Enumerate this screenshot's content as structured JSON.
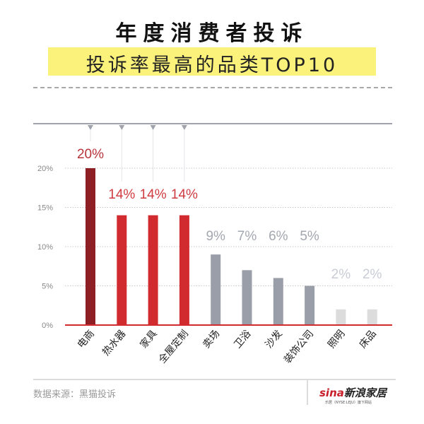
{
  "header": {
    "title": "年度消费者投诉",
    "subtitle": "投诉率最高的品类TOP10"
  },
  "chart_data": {
    "type": "bar",
    "title": "投诉率最高的品类TOP10",
    "xlabel": "",
    "ylabel": "",
    "ylim": [
      0,
      20
    ],
    "yticks": [
      "0%",
      "5%",
      "10%",
      "15%",
      "20%"
    ],
    "ytick_values": [
      0,
      5,
      10,
      15,
      20
    ],
    "grid": true,
    "categories": [
      "电商",
      "热水器",
      "家具",
      "全屋定制",
      "卖场",
      "卫浴",
      "沙发",
      "装饰公司",
      "照明",
      "床品"
    ],
    "values": [
      20,
      14,
      14,
      14,
      9,
      7,
      6,
      5,
      2,
      2
    ],
    "labels": [
      "20%",
      "14%",
      "14%",
      "14%",
      "9%",
      "7%",
      "6%",
      "5%",
      "2%",
      "2%"
    ],
    "bar_colors": [
      "#8e1f24",
      "#d12b30",
      "#d12b30",
      "#d12b30",
      "#9a9ea8",
      "#9a9ea8",
      "#9a9ea8",
      "#9a9ea8",
      "#dcdcdc",
      "#dcdcdc"
    ],
    "label_colors": [
      "#b8343a",
      "#cf3b41",
      "#cf3b41",
      "#cf3b41",
      "#a3a7b0",
      "#a3a7b0",
      "#a3a7b0",
      "#a3a7b0",
      "#c9ccd6",
      "#c9ccd6"
    ],
    "axis_color": "#d12b30"
  },
  "footer": {
    "source": "数据来源：黑猫投诉",
    "logo_brand": "sina",
    "logo_text": "新浪家居",
    "logo_sub": "乐居（NYSE:LEJU）旗下网站"
  }
}
